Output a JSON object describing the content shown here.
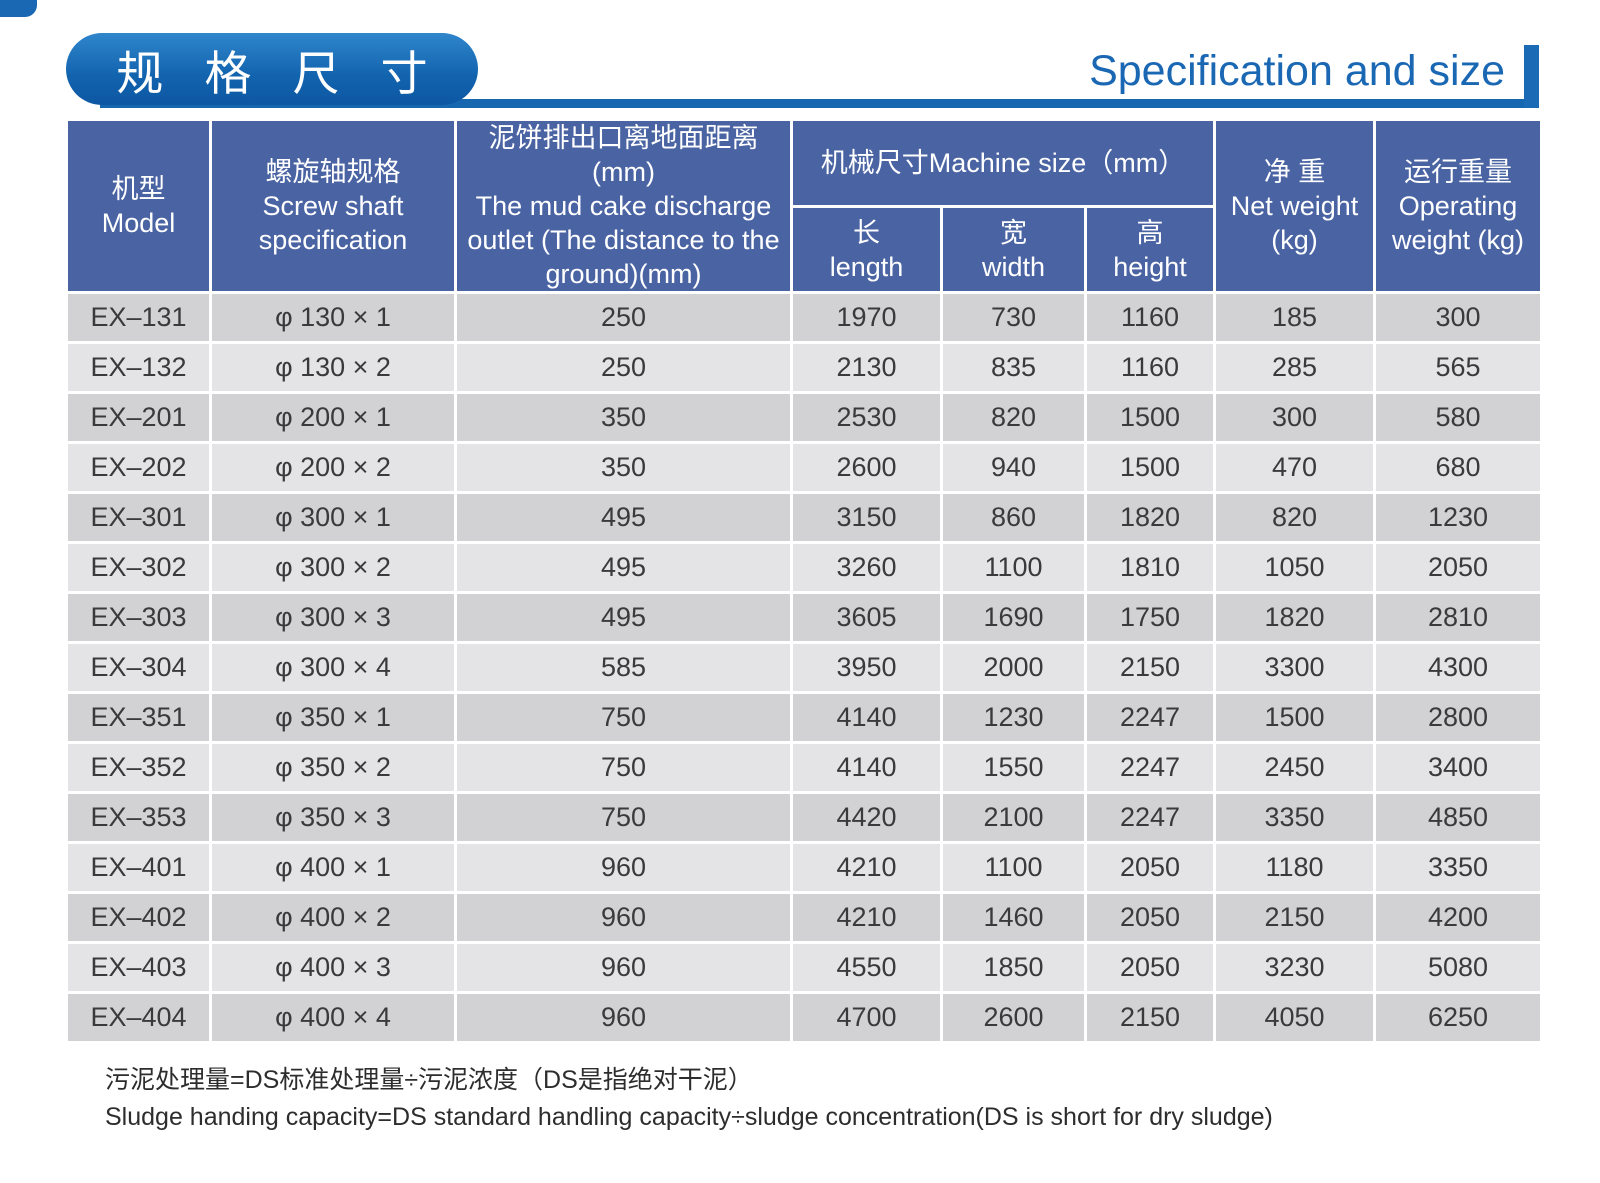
{
  "page": {
    "title_badge": "规 格 尺 寸",
    "title_en": "Specification and size"
  },
  "colors": {
    "accent_blue": "#1a67b3",
    "header_blue": "#4a63a3",
    "row_dark": "#d2d2d4",
    "row_light": "#e4e4e6",
    "title_text_blue": "#1a67b4"
  },
  "table": {
    "headers": {
      "model_zh": "机型",
      "model_en": "Model",
      "screw_zh": "螺旋轴规格",
      "screw_en": "Screw shaft specification",
      "outlet_zh": "泥饼排出口离地面距离",
      "outlet_mm": "(mm)",
      "outlet_en": "The mud cake discharge outlet (The distance to the ground)(mm)",
      "machine_size": "机械尺寸Machine size（mm）",
      "length_zh": "长",
      "length_en": "length",
      "width_zh": "宽",
      "width_en": "width",
      "height_zh": "高",
      "height_en": "height",
      "net_zh": "净 重",
      "net_en": "Net weight (kg)",
      "operating_zh": "运行重量",
      "operating_en": "Operating weight (kg)"
    },
    "rows": [
      {
        "model": "EX–131",
        "screw": "φ 130 × 1",
        "outlet": "250",
        "length": "1970",
        "width": "730",
        "height": "1160",
        "net": "185",
        "operating": "300"
      },
      {
        "model": "EX–132",
        "screw": "φ 130 × 2",
        "outlet": "250",
        "length": "2130",
        "width": "835",
        "height": "1160",
        "net": "285",
        "operating": "565"
      },
      {
        "model": "EX–201",
        "screw": "φ 200 × 1",
        "outlet": "350",
        "length": "2530",
        "width": "820",
        "height": "1500",
        "net": "300",
        "operating": "580"
      },
      {
        "model": "EX–202",
        "screw": "φ 200 × 2",
        "outlet": "350",
        "length": "2600",
        "width": "940",
        "height": "1500",
        "net": "470",
        "operating": "680"
      },
      {
        "model": "EX–301",
        "screw": "φ 300 × 1",
        "outlet": "495",
        "length": "3150",
        "width": "860",
        "height": "1820",
        "net": "820",
        "operating": "1230"
      },
      {
        "model": "EX–302",
        "screw": "φ 300 × 2",
        "outlet": "495",
        "length": "3260",
        "width": "1100",
        "height": "1810",
        "net": "1050",
        "operating": "2050"
      },
      {
        "model": "EX–303",
        "screw": "φ 300 × 3",
        "outlet": "495",
        "length": "3605",
        "width": "1690",
        "height": "1750",
        "net": "1820",
        "operating": "2810"
      },
      {
        "model": "EX–304",
        "screw": "φ 300 × 4",
        "outlet": "585",
        "length": "3950",
        "width": "2000",
        "height": "2150",
        "net": "3300",
        "operating": "4300"
      },
      {
        "model": "EX–351",
        "screw": "φ 350 × 1",
        "outlet": "750",
        "length": "4140",
        "width": "1230",
        "height": "2247",
        "net": "1500",
        "operating": "2800"
      },
      {
        "model": "EX–352",
        "screw": "φ 350 × 2",
        "outlet": "750",
        "length": "4140",
        "width": "1550",
        "height": "2247",
        "net": "2450",
        "operating": "3400"
      },
      {
        "model": "EX–353",
        "screw": "φ 350 × 3",
        "outlet": "750",
        "length": "4420",
        "width": "2100",
        "height": "2247",
        "net": "3350",
        "operating": "4850"
      },
      {
        "model": "EX–401",
        "screw": "φ 400 × 1",
        "outlet": "960",
        "length": "4210",
        "width": "1100",
        "height": "2050",
        "net": "1180",
        "operating": "3350"
      },
      {
        "model": "EX–402",
        "screw": "φ 400 × 2",
        "outlet": "960",
        "length": "4210",
        "width": "1460",
        "height": "2050",
        "net": "2150",
        "operating": "4200"
      },
      {
        "model": "EX–403",
        "screw": "φ 400 × 3",
        "outlet": "960",
        "length": "4550",
        "width": "1850",
        "height": "2050",
        "net": "3230",
        "operating": "5080"
      },
      {
        "model": "EX–404",
        "screw": "φ 400 × 4",
        "outlet": "960",
        "length": "4700",
        "width": "2600",
        "height": "2150",
        "net": "4050",
        "operating": "6250"
      }
    ]
  },
  "footnote": {
    "zh": "污泥处理量=DS标准处理量÷污泥浓度（DS是指绝对干泥）",
    "en": "Sludge handing capacity=DS standard handling capacity÷sludge concentration(DS is short for dry sludge)"
  }
}
